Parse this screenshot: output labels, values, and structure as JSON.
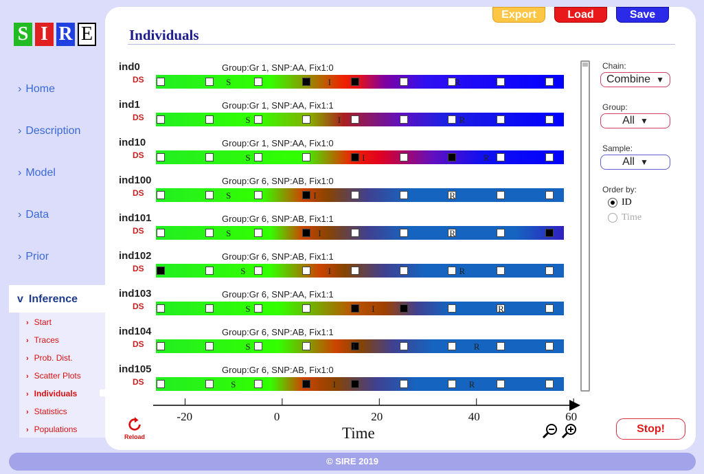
{
  "logo": [
    "S",
    "I",
    "R",
    "E"
  ],
  "nav": [
    {
      "label": "Home",
      "name": "nav-home"
    },
    {
      "label": "Description",
      "name": "nav-description"
    },
    {
      "label": "Model",
      "name": "nav-model"
    },
    {
      "label": "Data",
      "name": "nav-data"
    },
    {
      "label": "Prior",
      "name": "nav-prior"
    }
  ],
  "nav_active": {
    "chevron": "v",
    "label": "Inference"
  },
  "sub_nav": [
    {
      "label": "Start",
      "active": false
    },
    {
      "label": "Traces",
      "active": false
    },
    {
      "label": "Prob. Dist.",
      "active": false
    },
    {
      "label": "Scatter Plots",
      "active": false
    },
    {
      "label": "Individuals",
      "active": true
    },
    {
      "label": "Statistics",
      "active": false
    },
    {
      "label": "Populations",
      "active": false
    }
  ],
  "page_title": "Individuals",
  "toolbar": {
    "export_label": "Export",
    "load_label": "Load",
    "save_label": "Save"
  },
  "colors": {
    "susceptible": "#00ff00",
    "infected": "#e00000",
    "recovered": "#0000ff",
    "recovered_alt": "#1565c0",
    "accent": "#1c1c8c"
  },
  "individuals": [
    {
      "id": "ind0",
      "info": "Group:Gr 1, SNP:AA, Fix1:0",
      "ds": "DS",
      "gradient": [
        [
          "#22ee22",
          0
        ],
        [
          "#33ff00",
          28
        ],
        [
          "#ee2200",
          46
        ],
        [
          "#e01020",
          50
        ],
        [
          "#8000a0",
          56
        ],
        [
          "#3010f0",
          66
        ],
        [
          "#0000ff",
          100
        ]
      ],
      "checks": [
        [
          -25,
          false
        ],
        [
          -15,
          false
        ],
        [
          -5,
          false
        ],
        [
          5,
          true
        ],
        [
          15,
          true
        ],
        [
          25,
          false
        ],
        [
          35,
          false
        ],
        [
          45,
          false
        ],
        [
          55,
          false
        ]
      ],
      "labels": [
        [
          "S",
          -11
        ],
        [
          "I",
          10
        ],
        [
          "R",
          36
        ]
      ]
    },
    {
      "id": "ind1",
      "info": "Group:Gr 1, SNP:AA, Fix1:1",
      "ds": "DS",
      "gradient": [
        [
          "#22ee22",
          0
        ],
        [
          "#33ff00",
          25
        ],
        [
          "#88aa00",
          38
        ],
        [
          "#aa2020",
          46
        ],
        [
          "#6010c0",
          60
        ],
        [
          "#2020e0",
          70
        ],
        [
          "#0000ff",
          100
        ]
      ],
      "checks": [
        [
          -25,
          false
        ],
        [
          -15,
          false
        ],
        [
          -5,
          false
        ],
        [
          5,
          false
        ],
        [
          15,
          false
        ],
        [
          25,
          false
        ],
        [
          35,
          false
        ],
        [
          45,
          false
        ],
        [
          55,
          false
        ]
      ],
      "labels": [
        [
          "S",
          -7
        ],
        [
          "I",
          12
        ],
        [
          "R",
          37
        ]
      ]
    },
    {
      "id": "ind10",
      "info": "Group:Gr 1, SNP:AA, Fix1:0",
      "ds": "DS",
      "gradient": [
        [
          "#22ee22",
          0
        ],
        [
          "#33ff00",
          36
        ],
        [
          "#ee2200",
          48
        ],
        [
          "#e00020",
          55
        ],
        [
          "#6010c0",
          68
        ],
        [
          "#1010f0",
          80
        ],
        [
          "#0000ff",
          100
        ]
      ],
      "checks": [
        [
          -25,
          false
        ],
        [
          -15,
          false
        ],
        [
          -5,
          false
        ],
        [
          5,
          false
        ],
        [
          15,
          true
        ],
        [
          25,
          false
        ],
        [
          35,
          true
        ],
        [
          45,
          false
        ],
        [
          55,
          false
        ]
      ],
      "labels": [
        [
          "S",
          -7
        ],
        [
          "I",
          17
        ],
        [
          "R",
          42
        ]
      ]
    },
    {
      "id": "ind100",
      "info": "Group:Gr 6, SNP:AB, Fix1:0",
      "ds": "DS",
      "gradient": [
        [
          "#22ee22",
          0
        ],
        [
          "#33ff00",
          26
        ],
        [
          "#cc4400",
          36
        ],
        [
          "#884400",
          42
        ],
        [
          "#404090",
          52
        ],
        [
          "#1565c0",
          62
        ],
        [
          "#1565c0",
          100
        ]
      ],
      "checks": [
        [
          -25,
          false
        ],
        [
          -15,
          false
        ],
        [
          -5,
          false
        ],
        [
          5,
          true
        ],
        [
          15,
          false
        ],
        [
          25,
          false
        ],
        [
          35,
          false
        ],
        [
          45,
          false
        ],
        [
          55,
          false
        ]
      ],
      "labels": [
        [
          "S",
          -11
        ],
        [
          "I",
          7
        ],
        [
          "R",
          35
        ]
      ]
    },
    {
      "id": "ind101",
      "info": "Group:Gr 6, SNP:AB, Fix1:1",
      "ds": "DS",
      "gradient": [
        [
          "#22ee22",
          0
        ],
        [
          "#33ff00",
          28
        ],
        [
          "#cc4400",
          36
        ],
        [
          "#884400",
          42
        ],
        [
          "#404090",
          52
        ],
        [
          "#1565c0",
          62
        ],
        [
          "#1565c0",
          88
        ],
        [
          "#3020c0",
          100
        ]
      ],
      "checks": [
        [
          -25,
          false
        ],
        [
          -15,
          false
        ],
        [
          -5,
          false
        ],
        [
          5,
          true
        ],
        [
          15,
          false
        ],
        [
          25,
          false
        ],
        [
          35,
          false
        ],
        [
          45,
          false
        ],
        [
          55,
          true
        ]
      ],
      "labels": [
        [
          "S",
          -11
        ],
        [
          "I",
          8
        ],
        [
          "R",
          35
        ]
      ]
    },
    {
      "id": "ind102",
      "info": "Group:Gr 6, SNP:AB, Fix1:1",
      "ds": "DS",
      "gradient": [
        [
          "#22ee22",
          0
        ],
        [
          "#33ff00",
          28
        ],
        [
          "#cc4400",
          40
        ],
        [
          "#884400",
          46
        ],
        [
          "#404090",
          56
        ],
        [
          "#1565c0",
          66
        ],
        [
          "#1565c0",
          100
        ]
      ],
      "checks": [
        [
          -25,
          true
        ],
        [
          -15,
          false
        ],
        [
          -5,
          false
        ],
        [
          5,
          false
        ],
        [
          15,
          false
        ],
        [
          25,
          false
        ],
        [
          35,
          false
        ],
        [
          45,
          false
        ],
        [
          55,
          false
        ]
      ],
      "labels": [
        [
          "S",
          -8
        ],
        [
          "I",
          10
        ],
        [
          "R",
          37
        ]
      ]
    },
    {
      "id": "ind103",
      "info": "Group:Gr 6, SNP:AA, Fix1:1",
      "ds": "DS",
      "gradient": [
        [
          "#22ee22",
          0
        ],
        [
          "#33ff00",
          30
        ],
        [
          "#bb5500",
          48
        ],
        [
          "#a04000",
          56
        ],
        [
          "#404090",
          64
        ],
        [
          "#1565c0",
          72
        ],
        [
          "#1565c0",
          100
        ]
      ],
      "checks": [
        [
          -25,
          false
        ],
        [
          -15,
          false
        ],
        [
          -5,
          false
        ],
        [
          5,
          false
        ],
        [
          15,
          true
        ],
        [
          25,
          true
        ],
        [
          35,
          false
        ],
        [
          45,
          false
        ],
        [
          55,
          false
        ]
      ],
      "labels": [
        [
          "S",
          -7
        ],
        [
          "I",
          19
        ],
        [
          "R",
          45
        ]
      ]
    },
    {
      "id": "ind104",
      "info": "Group:Gr 6, SNP:AB, Fix1:1",
      "ds": "DS",
      "gradient": [
        [
          "#22ee22",
          0
        ],
        [
          "#33ff00",
          30
        ],
        [
          "#cc4400",
          44
        ],
        [
          "#884400",
          50
        ],
        [
          "#404090",
          58
        ],
        [
          "#1565c0",
          68
        ],
        [
          "#1565c0",
          100
        ]
      ],
      "checks": [
        [
          -25,
          false
        ],
        [
          -15,
          false
        ],
        [
          -5,
          false
        ],
        [
          5,
          false
        ],
        [
          15,
          true
        ],
        [
          25,
          false
        ],
        [
          35,
          false
        ],
        [
          45,
          false
        ],
        [
          55,
          false
        ]
      ],
      "labels": [
        [
          "S",
          -7
        ],
        [
          "I",
          15
        ],
        [
          "R",
          40
        ]
      ]
    },
    {
      "id": "ind105",
      "info": "Group:Gr 6, SNP:AB, Fix1:0",
      "ds": "DS",
      "gradient": [
        [
          "#22ee22",
          0
        ],
        [
          "#33ff00",
          28
        ],
        [
          "#cc4400",
          36
        ],
        [
          "#884400",
          44
        ],
        [
          "#404090",
          54
        ],
        [
          "#1565c0",
          64
        ],
        [
          "#1565c0",
          100
        ]
      ],
      "checks": [
        [
          -25,
          false
        ],
        [
          -15,
          false
        ],
        [
          -5,
          false
        ],
        [
          5,
          true
        ],
        [
          15,
          true
        ],
        [
          25,
          false
        ],
        [
          35,
          false
        ],
        [
          45,
          false
        ],
        [
          55,
          false
        ]
      ],
      "labels": [
        [
          "S",
          -10
        ],
        [
          "I",
          11
        ],
        [
          "R",
          39
        ]
      ]
    }
  ],
  "axis": {
    "min": -26,
    "max": 58,
    "ticks": [
      "-20",
      "0",
      "20",
      "40",
      "60"
    ],
    "tick_values": [
      -20,
      0,
      20,
      40,
      60
    ],
    "title": "Time"
  },
  "controls": {
    "chain_label": "Chain:",
    "chain_value": "Combine",
    "group_label": "Group:",
    "group_value": "All",
    "sample_label": "Sample:",
    "sample_value": "All",
    "order_label": "Order by:",
    "order_options": [
      "ID",
      "Time"
    ],
    "order_selected": "ID"
  },
  "reload_label": "Reload",
  "stop_label": "Stop!",
  "footer": "© SIRE 2019"
}
